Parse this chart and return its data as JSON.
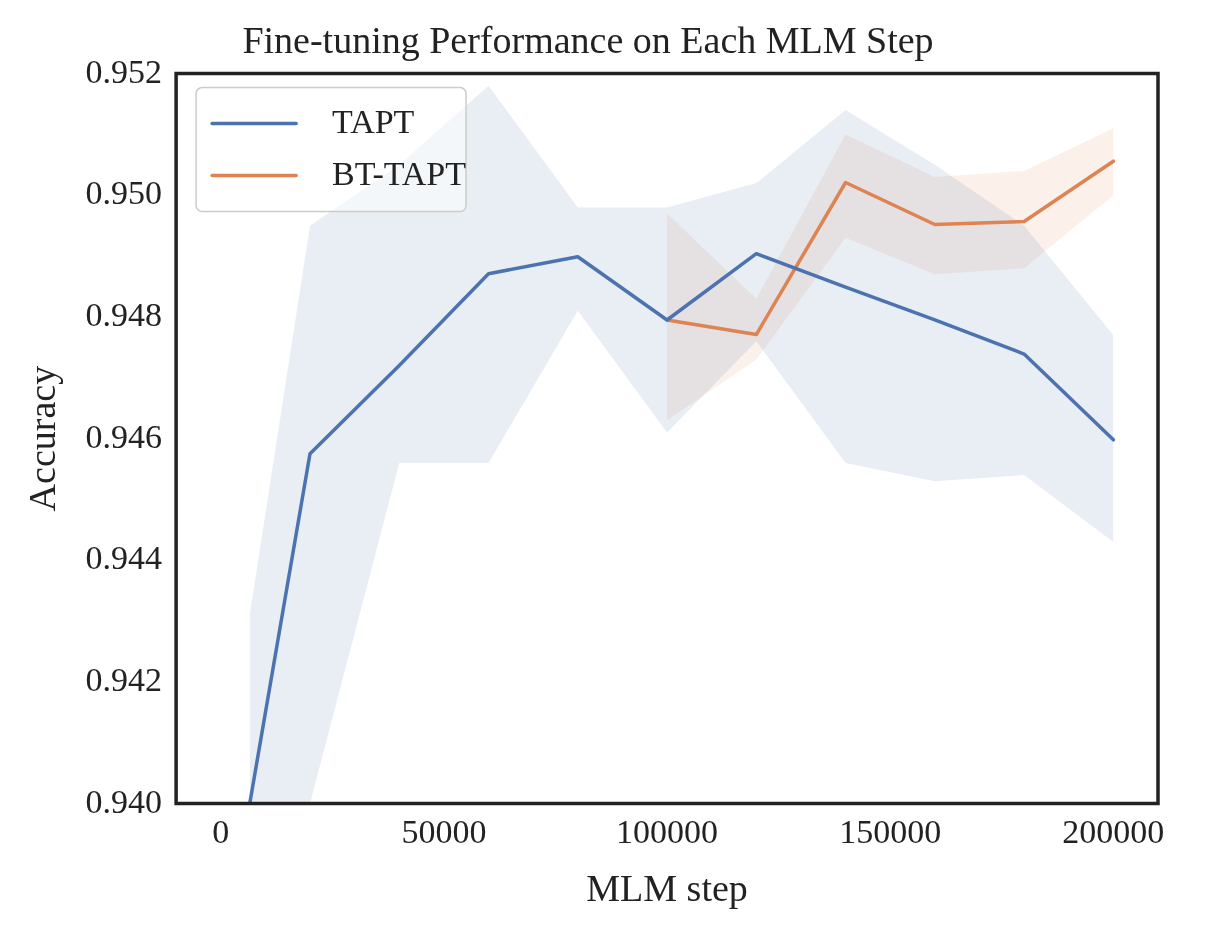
{
  "chart_data": {
    "type": "line",
    "title": "Fine-tuning Performance on Each MLM Step",
    "xlabel": "MLM step",
    "ylabel": "Accuracy",
    "x": [
      6500,
      20000,
      40000,
      60000,
      80000,
      100000,
      120000,
      140000,
      160000,
      180000,
      200000
    ],
    "series": [
      {
        "name": "TAPT",
        "color": "#4c72b0",
        "values": [
          0.94,
          0.94575,
          0.9472,
          0.94871,
          0.94899,
          0.94795,
          0.94904,
          0.94849,
          0.94795,
          0.94739,
          0.94598
        ],
        "lower": [
          0.94,
          0.94,
          0.9456,
          0.9456,
          0.9481,
          0.9461,
          0.9476,
          0.9456,
          0.9453,
          0.9454,
          0.9443
        ],
        "upper": [
          0.9431,
          0.9495,
          0.9505,
          0.9518,
          0.9498,
          0.9498,
          0.9502,
          0.9514,
          0.9505,
          0.9495,
          0.9477
        ]
      },
      {
        "name": "BT-TAPT",
        "color": "#dd8452",
        "x": [
          100000,
          120000,
          140000,
          160000,
          180000,
          200000
        ],
        "values": [
          0.94795,
          0.94771,
          0.95021,
          0.94952,
          0.94957,
          0.95056
        ],
        "lower": [
          0.9463,
          0.9473,
          0.9493,
          0.9487,
          0.9488,
          0.95
        ],
        "upper": [
          0.9497,
          0.9483,
          0.951,
          0.9503,
          0.9504,
          0.9511
        ]
      }
    ],
    "xlim": [
      -10000,
      210000
    ],
    "xticks": [
      0,
      50000,
      100000,
      150000,
      200000
    ],
    "ylim": [
      0.94,
      0.952
    ],
    "yticks": [
      {
        "value": 0.94,
        "label": "0.940"
      },
      {
        "value": 0.942,
        "label": "0.942"
      },
      {
        "value": 0.944,
        "label": "0.944"
      },
      {
        "value": 0.946,
        "label": "0.946"
      },
      {
        "value": 0.948,
        "label": "0.948"
      },
      {
        "value": 0.95,
        "label": "0.950"
      },
      {
        "value": 0.952,
        "label": "0.952"
      }
    ],
    "grid": false,
    "legend": "top left",
    "marker": "none",
    "line_style": "solid"
  }
}
